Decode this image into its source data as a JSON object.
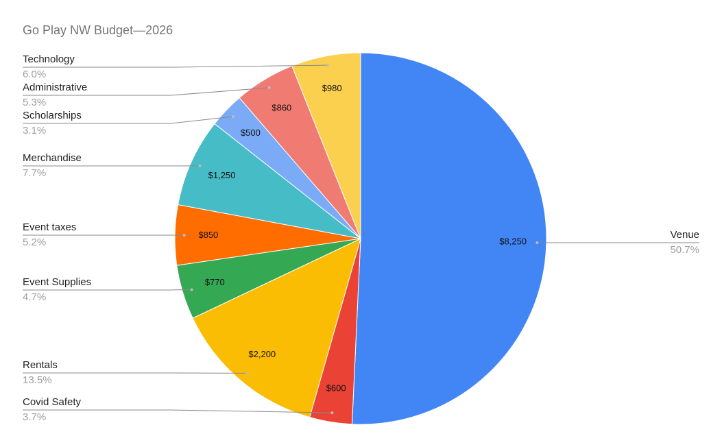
{
  "chart_data": {
    "type": "pie",
    "title": "Go Play NW Budget—2026",
    "categories": [
      "Venue",
      "Covid Safety",
      "Rentals",
      "Event Supplies",
      "Event taxes",
      "Merchandise",
      "Scholarships",
      "Administrative",
      "Technology"
    ],
    "values": [
      8250,
      600,
      2200,
      770,
      850,
      1250,
      500,
      860,
      980
    ],
    "value_labels": [
      "$8,250",
      "$600",
      "$2,200",
      "$770",
      "$850",
      "$1,250",
      "$500",
      "$860",
      "$980"
    ],
    "percentage_labels": [
      "50.7%",
      "3.7%",
      "13.5%",
      "4.7%",
      "5.2%",
      "7.7%",
      "3.1%",
      "5.3%",
      "6.0%"
    ],
    "colors": [
      "#4285f4",
      "#ea4335",
      "#fbbc04",
      "#34a853",
      "#ff6d01",
      "#46bdc6",
      "#7baaf7",
      "#f07b72",
      "#fcd04f"
    ]
  }
}
